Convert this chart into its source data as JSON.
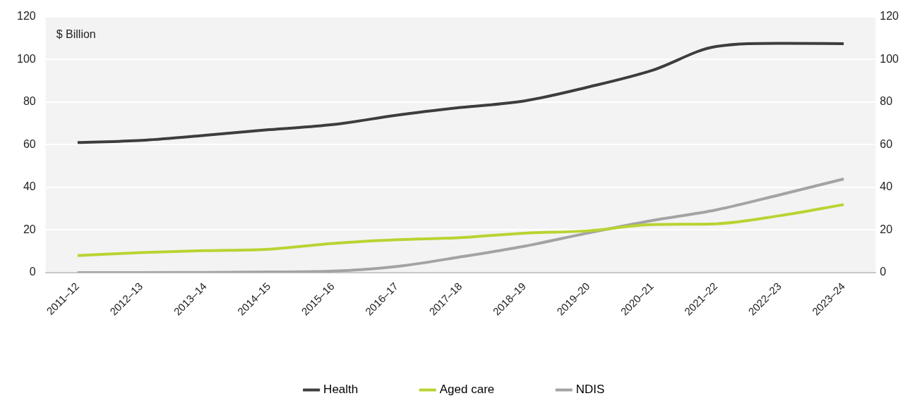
{
  "chart_data": {
    "type": "line",
    "ylabel": "$ Billion",
    "categories": [
      "2011–12",
      "2012–13",
      "2013–14",
      "2014–15",
      "2015–16",
      "2016–17",
      "2017–18",
      "2018–19",
      "2019–20",
      "2020–21",
      "2021–22",
      "2022–23",
      "2023–24"
    ],
    "series": [
      {
        "name": "Health",
        "color": "#3d3d3d",
        "values": [
          61,
          62,
          64.4,
          67,
          69.4,
          73.8,
          77.4,
          80.5,
          87,
          94.8,
          106,
          107.5,
          107.3
        ]
      },
      {
        "name": "Aged care",
        "color": "#b8d432",
        "values": [
          8,
          9.4,
          10.3,
          11,
          13.7,
          15.4,
          16.4,
          18.5,
          19.6,
          22.5,
          22.9,
          26.7,
          31.9
        ]
      },
      {
        "name": "NDIS",
        "color": "#a3a3a3",
        "values": [
          0,
          0,
          0.1,
          0.3,
          0.7,
          2.9,
          7.4,
          12.4,
          18.6,
          24.4,
          29.4,
          36.5,
          43.9
        ]
      }
    ],
    "ylim": [
      0,
      120
    ],
    "yticks": [
      0,
      20,
      40,
      60,
      80,
      100,
      120
    ],
    "y2lim": [
      0,
      120
    ],
    "y2ticks": [
      0,
      20,
      40,
      60,
      80,
      100,
      120
    ],
    "grid": "y",
    "legend": "bottom",
    "marker": "none",
    "line_style": "solid"
  }
}
